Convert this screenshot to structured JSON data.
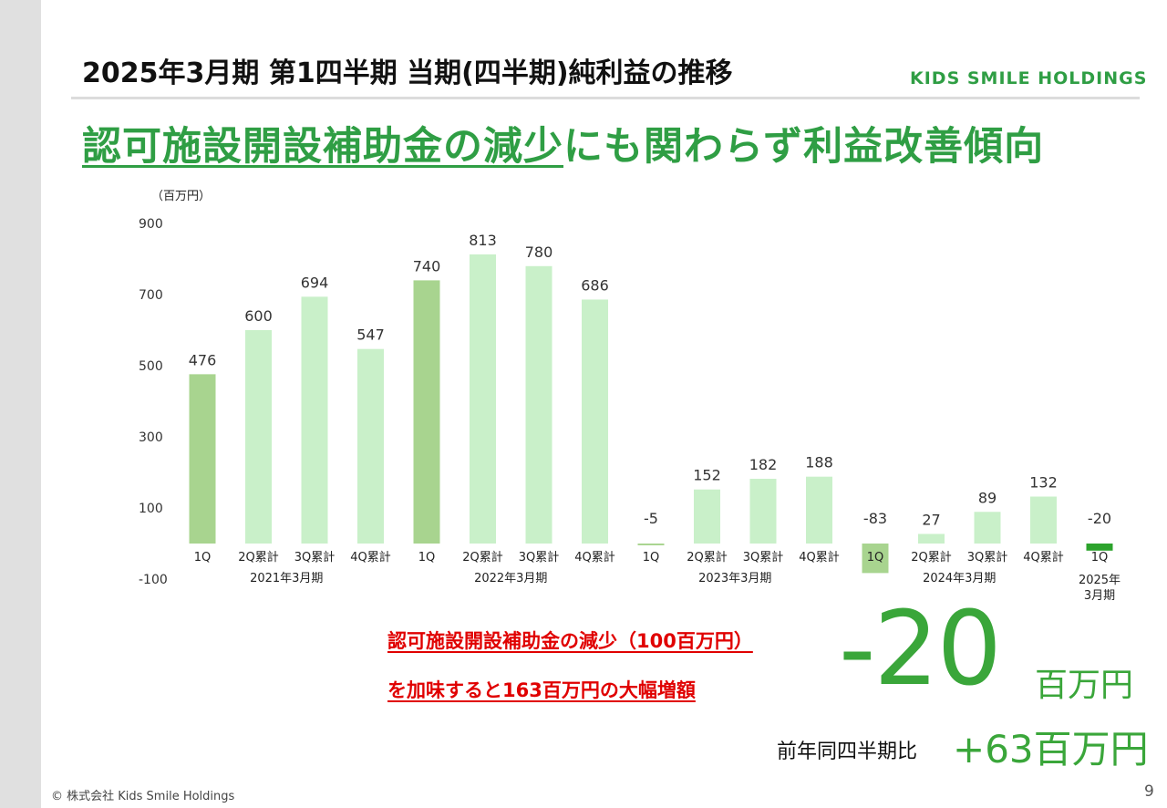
{
  "header": {
    "title": "2025年3月期 第1四半期 当期(四半期)純利益の推移",
    "logo": "KIDS SMILE HOLDINGS",
    "headline_underlined": "認可施設開設補助金の減少",
    "headline_rest": "にも関わらず利益改善傾向"
  },
  "chart_data": {
    "type": "bar",
    "unit_label": "（百万円）",
    "ylim": [
      -100,
      900
    ],
    "yticks": [
      -100,
      100,
      300,
      500,
      700,
      900
    ],
    "grid": false,
    "categories": [
      "1Q",
      "2Q累計",
      "3Q累計",
      "4Q累計",
      "1Q",
      "2Q累計",
      "3Q累計",
      "4Q累計",
      "1Q",
      "2Q累計",
      "3Q累計",
      "4Q累計",
      "1Q",
      "2Q累計",
      "3Q累計",
      "4Q累計",
      "1Q"
    ],
    "values": [
      476,
      600,
      694,
      547,
      740,
      813,
      780,
      686,
      -5,
      152,
      182,
      188,
      -83,
      27,
      89,
      132,
      -20
    ],
    "groups": [
      {
        "label": "2021年3月期",
        "start": 0,
        "end": 3
      },
      {
        "label": "2022年3月期",
        "start": 4,
        "end": 7
      },
      {
        "label": "2023年3月期",
        "start": 8,
        "end": 11
      },
      {
        "label": "2024年3月期",
        "start": 12,
        "end": 15
      },
      {
        "label": "2025年3月期",
        "start": 16,
        "end": 16
      }
    ],
    "colors": {
      "q1": "#a8d48f",
      "cumulative": "#c9f0c9",
      "current": "#2ca32c"
    }
  },
  "callout": {
    "note_line1": "認可施設開設補助金の減少（100百万円）",
    "note_line2": "を加味すると163百万円の大幅増額",
    "big_value": "-20",
    "big_unit": "百万円",
    "yoy_label": "前年同四半期比",
    "yoy_value": "+63百万円"
  },
  "footer": {
    "copyright": "© 株式会社 Kids Smile Holdings",
    "page": "9"
  }
}
